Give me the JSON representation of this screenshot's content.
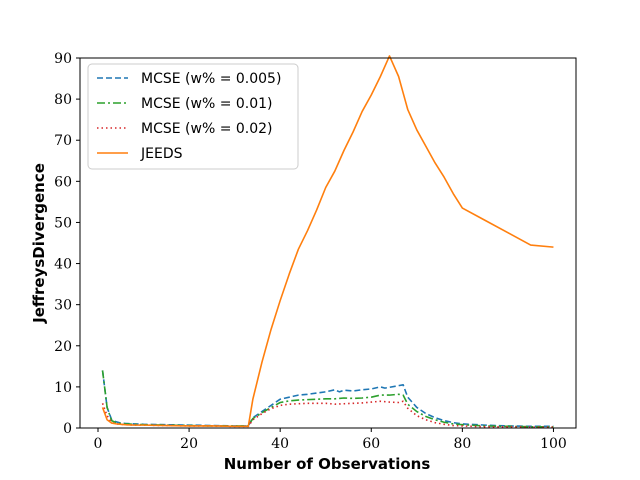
{
  "chart_data": {
    "type": "line",
    "title": "",
    "xlabel": "Number of Observations",
    "ylabel": "JeffreysDivergence",
    "xlim": [
      -3.95,
      104.95
    ],
    "ylim": [
      0,
      90
    ],
    "xticks": [
      0,
      20,
      40,
      60,
      80,
      100
    ],
    "yticks": [
      0,
      10,
      20,
      30,
      40,
      50,
      60,
      70,
      80,
      90
    ],
    "xtick_labels": [
      "0",
      "20",
      "40",
      "60",
      "80",
      "100"
    ],
    "ytick_labels": [
      "0",
      "10",
      "20",
      "30",
      "40",
      "50",
      "60",
      "70",
      "80",
      "90"
    ],
    "grid": false,
    "legend_position": "top-left",
    "series": [
      {
        "name": "MCSE (w% = 0.005)",
        "color": "#1f77b4",
        "dash": "dashed",
        "x": [
          1,
          2,
          3,
          4,
          5,
          6,
          8,
          10,
          15,
          20,
          25,
          30,
          33,
          34,
          36,
          38,
          40,
          42,
          44,
          46,
          48,
          50,
          52,
          53,
          54,
          56,
          58,
          60,
          62,
          63,
          64,
          66,
          67,
          68,
          70,
          72,
          74,
          76,
          78,
          80,
          85,
          90,
          95,
          100
        ],
        "y": [
          14,
          5,
          2,
          1.5,
          1.2,
          1.1,
          1.0,
          0.9,
          0.8,
          0.7,
          0.6,
          0.5,
          0.5,
          2.5,
          4.0,
          5.5,
          7.0,
          7.5,
          8.0,
          8.2,
          8.5,
          8.8,
          9.3,
          8.8,
          9.2,
          9.0,
          9.3,
          9.5,
          10.0,
          9.7,
          9.9,
          10.3,
          10.5,
          7.5,
          5.0,
          3.5,
          2.5,
          1.8,
          1.3,
          1.0,
          0.7,
          0.5,
          0.4,
          0.4
        ]
      },
      {
        "name": "MCSE (w% = 0.01)",
        "color": "#2ca02c",
        "dash": "dashdot",
        "x": [
          1,
          2,
          3,
          4,
          5,
          6,
          8,
          10,
          15,
          20,
          25,
          30,
          33,
          34,
          36,
          38,
          40,
          42,
          44,
          46,
          48,
          50,
          52,
          54,
          56,
          58,
          60,
          62,
          64,
          66,
          67,
          68,
          70,
          72,
          74,
          76,
          78,
          80,
          85,
          90,
          95,
          100
        ],
        "y": [
          14,
          5,
          1.8,
          1.3,
          1.1,
          1.0,
          0.9,
          0.8,
          0.7,
          0.6,
          0.5,
          0.5,
          0.5,
          2.3,
          3.7,
          5.0,
          6.2,
          6.6,
          6.8,
          6.9,
          7.0,
          7.1,
          7.1,
          7.3,
          7.2,
          7.3,
          7.5,
          8.0,
          8.0,
          8.2,
          8.0,
          5.8,
          4.0,
          2.8,
          2.0,
          1.4,
          1.0,
          0.8,
          0.5,
          0.4,
          0.3,
          0.3
        ]
      },
      {
        "name": "MCSE (w% = 0.02)",
        "color": "#d62728",
        "dash": "dotted",
        "x": [
          1,
          2,
          3,
          4,
          5,
          6,
          8,
          10,
          15,
          20,
          25,
          30,
          33,
          34,
          36,
          38,
          40,
          42,
          44,
          46,
          48,
          50,
          52,
          54,
          56,
          58,
          60,
          62,
          64,
          66,
          67,
          68,
          70,
          72,
          74,
          76,
          78,
          80,
          85,
          90,
          95,
          100
        ],
        "y": [
          6,
          3,
          1.3,
          1.0,
          0.9,
          0.8,
          0.7,
          0.7,
          0.6,
          0.5,
          0.5,
          0.4,
          0.4,
          2.0,
          3.5,
          4.7,
          5.5,
          5.8,
          5.9,
          6.0,
          6.0,
          6.0,
          5.8,
          5.9,
          6.0,
          6.1,
          6.3,
          6.5,
          6.3,
          6.2,
          6.5,
          4.8,
          3.0,
          2.0,
          1.3,
          0.9,
          0.6,
          0.5,
          0.3,
          0.3,
          0.2,
          0.2
        ]
      },
      {
        "name": "JEEDS",
        "color": "#ff7f0e",
        "dash": "solid",
        "x": [
          1,
          2,
          3,
          4,
          5,
          6,
          8,
          10,
          15,
          20,
          25,
          30,
          33,
          34,
          36,
          38,
          40,
          42,
          44,
          46,
          48,
          50,
          52,
          54,
          56,
          58,
          60,
          62,
          64,
          66,
          67,
          68,
          70,
          72,
          74,
          76,
          78,
          80,
          85,
          90,
          95,
          100
        ],
        "y": [
          5,
          2,
          1.2,
          1.0,
          0.9,
          0.8,
          0.7,
          0.7,
          0.6,
          0.5,
          0.5,
          0.4,
          0.4,
          7.0,
          16.0,
          24.0,
          31.0,
          37.5,
          43.5,
          48.0,
          53.0,
          58.5,
          62.5,
          67.5,
          72.0,
          77.0,
          81.0,
          85.5,
          90.5,
          85.5,
          81.5,
          77.5,
          72.5,
          68.5,
          64.5,
          61.0,
          57.0,
          53.5,
          50.5,
          47.5,
          44.5,
          44.0
        ]
      }
    ]
  }
}
